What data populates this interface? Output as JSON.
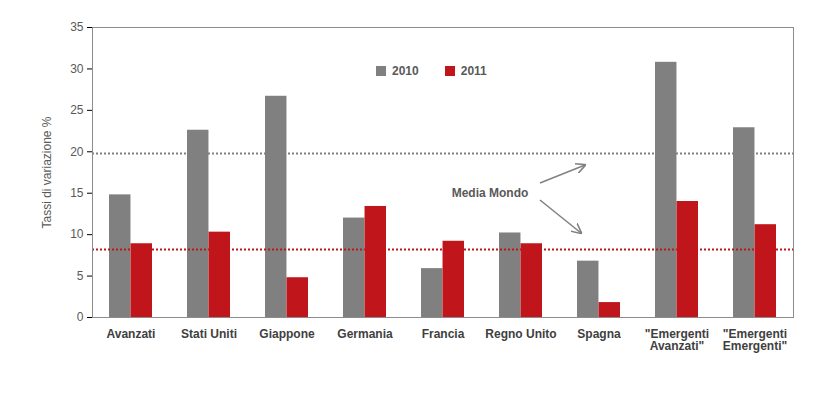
{
  "chart_data": {
    "type": "bar",
    "categories": [
      "Avanzati",
      "Stati Uniti",
      "Giappone",
      "Germania",
      "Francia",
      "Regno Unito",
      "Spagna",
      "\"Emergenti\nAvanzati\"",
      "\"Emergenti\nEmergenti\""
    ],
    "series": [
      {
        "name": "2010",
        "color": "#808080",
        "values": [
          14.8,
          22.6,
          26.7,
          12.0,
          5.9,
          10.2,
          6.8,
          30.8,
          22.9
        ],
        "world_average": 19.8
      },
      {
        "name": "2011",
        "color": "#c0151b",
        "values": [
          8.9,
          10.3,
          4.8,
          13.4,
          9.2,
          8.9,
          1.8,
          14.0,
          11.2
        ],
        "world_average": 8.2
      }
    ],
    "ylabel": "Tassi di variazione %",
    "ylim": [
      0,
      35
    ],
    "yticks": [
      0,
      5,
      10,
      15,
      20,
      25,
      30,
      35
    ],
    "annotation": "Media Mondo",
    "legend": "top"
  }
}
